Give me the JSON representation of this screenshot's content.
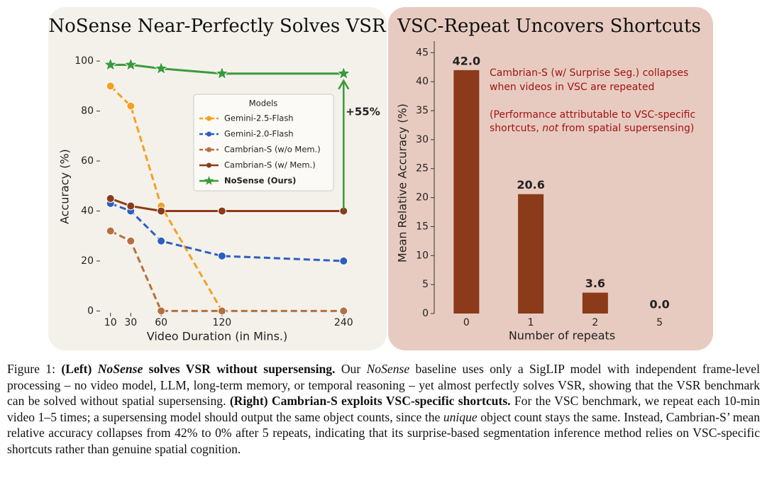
{
  "chart_data": [
    {
      "type": "line",
      "title": "NoSense Near-Perfectly Solves VSR",
      "xlabel": "Video Duration (in Mins.)",
      "ylabel": "Accuracy (%)",
      "x": [
        10,
        30,
        60,
        120,
        240
      ],
      "xlim": [
        -22,
        251
      ],
      "xticks": [
        10,
        30,
        60,
        120,
        240
      ],
      "ylim": [
        -5,
        104
      ],
      "yticks": [
        0,
        20,
        40,
        60,
        80,
        100
      ],
      "legend_title": "Models",
      "series": [
        {
          "name": "Gemini-2.5-Flash",
          "color": "#f5a020",
          "dash": true,
          "values": [
            90,
            82,
            42,
            0,
            null
          ]
        },
        {
          "name": "Gemini-2.0-Flash",
          "color": "#2d5fbf",
          "dash": true,
          "values": [
            43,
            40,
            28,
            22,
            20
          ]
        },
        {
          "name": "Cambrian-S (w/o Mem.)",
          "color": "#b5703f",
          "dash": true,
          "values": [
            32,
            28,
            0,
            0,
            0
          ]
        },
        {
          "name": "Cambrian-S (w/ Mem.)",
          "color": "#8b3a1a",
          "dash": false,
          "values": [
            45,
            42,
            40,
            40,
            40
          ]
        },
        {
          "name": "NoSense (Ours)",
          "color": "#3a9a3a",
          "dash": false,
          "marker": "star",
          "bold": true,
          "values": [
            98.5,
            98.5,
            97,
            95,
            95
          ]
        }
      ],
      "annotation": {
        "text": "+55%",
        "x": 240,
        "from": 40,
        "to": 95,
        "color": "#3a9a3a"
      }
    },
    {
      "type": "bar",
      "title": "VSC-Repeat Uncovers Shortcuts",
      "xlabel": "Number of repeats",
      "ylabel": "Mean Relative Accuracy (%)",
      "categories": [
        "0",
        "1",
        "2",
        "5"
      ],
      "values": [
        42.0,
        20.6,
        3.6,
        0.0
      ],
      "value_labels": [
        "42.0",
        "20.6",
        "3.6",
        "0.0"
      ],
      "color": "#8b3a1a",
      "ylim": [
        0,
        47
      ],
      "yticks": [
        0,
        5,
        10,
        15,
        20,
        25,
        30,
        35,
        40,
        45
      ],
      "annotation": {
        "lines": [
          "Cambrian-S (w/ Surprise Seg.) collapses",
          "when videos in VSC are repeated",
          "(Performance attributable to VSC-specific"
        ],
        "last_line": [
          "shortcuts, ",
          "not",
          " from spatial supersensing)"
        ]
      }
    }
  ],
  "caption": [
    "Figure 1: ",
    "(Left) ",
    "NoSense",
    " solves VSR without supersensing.",
    " Our ",
    "NoSense",
    " baseline uses only a SigLIP model with independent frame-level processing – no video model, LLM, long-term memory, or temporal reasoning – yet almost perfectly solves VSR, showing that the VSR benchmark can be solved without spatial supersensing. ",
    "(Right) Cambrian-S exploits VSC-specific shortcuts.",
    " For the VSC benchmark, we repeat each 10-min video 1–5 times; a supersensing model should output the same object counts, since the ",
    "unique",
    " object count stays the same. Instead, Cambrian-S’ mean relative accuracy collapses from 42% to 0% after 5 repeats, indicating that its surprise-based segmentation inference method relies on VSC-specific shortcuts rather than genuine spatial cognition."
  ]
}
